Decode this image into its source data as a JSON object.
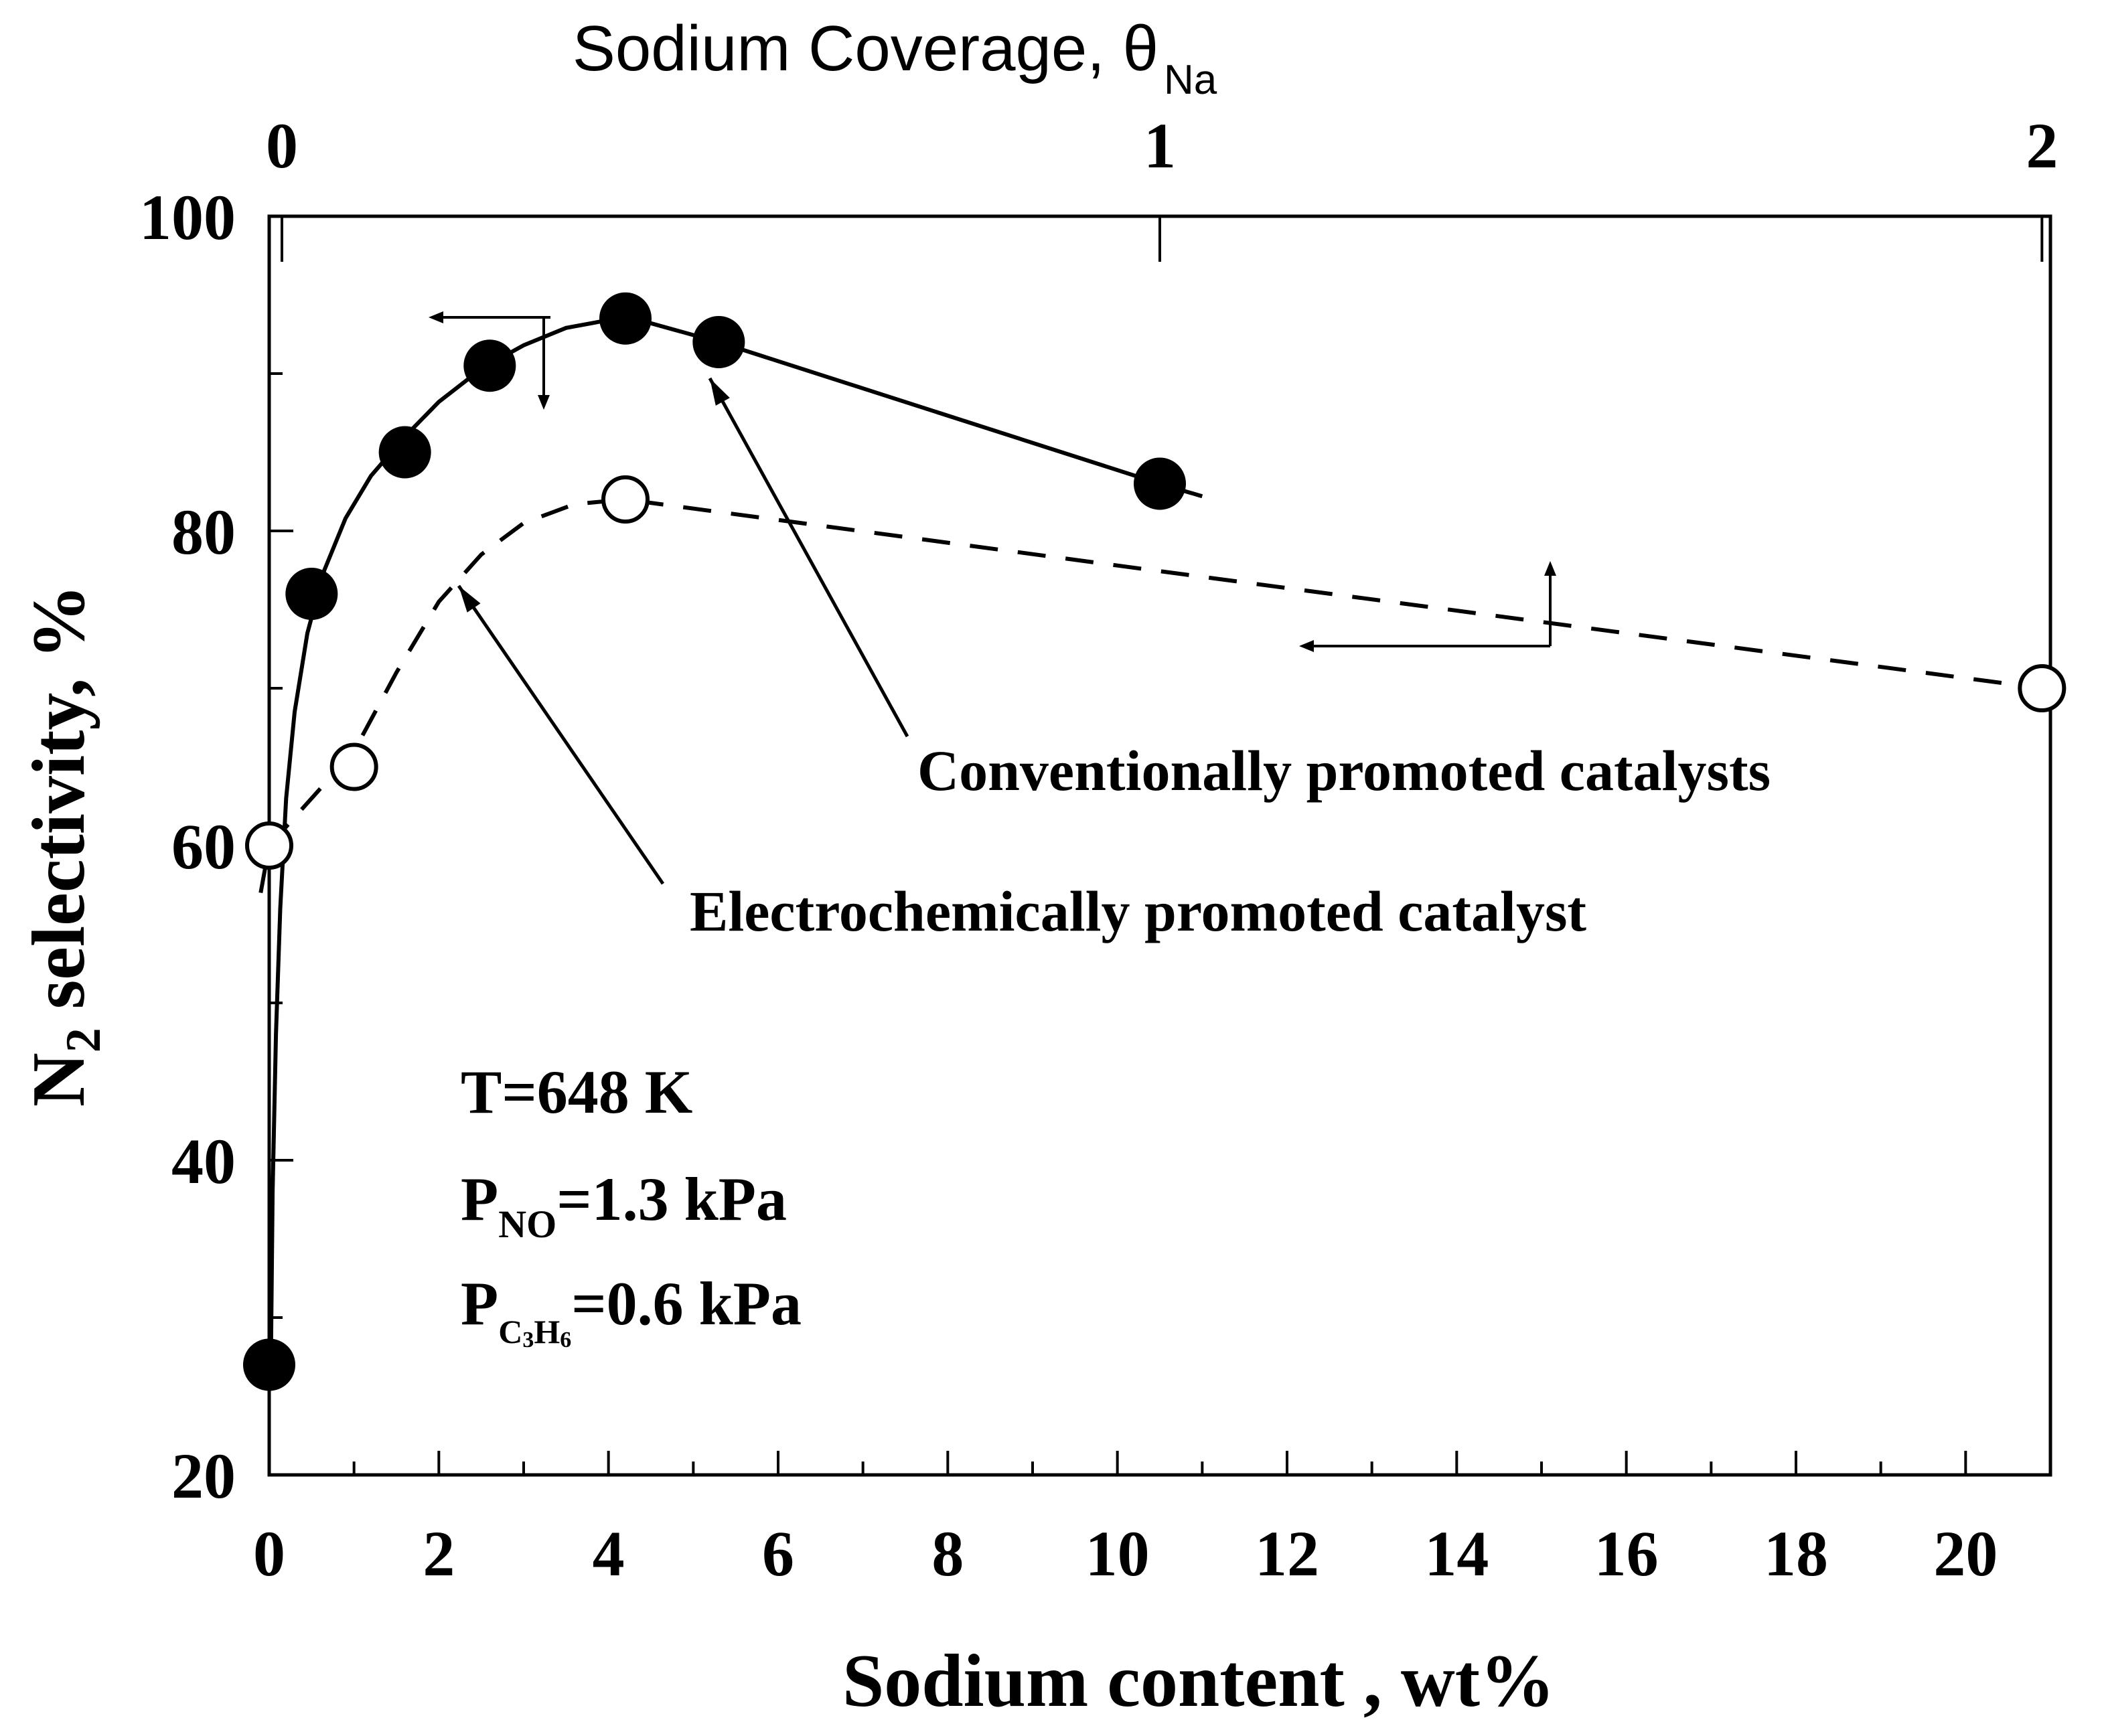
{
  "chart_data": {
    "type": "scatter",
    "xlabel": "Sodium content , wt%",
    "ylabel": "N",
    "ylabel_subscript": "2",
    "ylabel_rest": " selectivity,  %",
    "top_axis_label": "Sodium Coverage, θ",
    "top_axis_label_subscript": "Na",
    "xlim": [
      0,
      21
    ],
    "ylim": [
      20,
      100
    ],
    "x_ticks": [
      0,
      2,
      4,
      6,
      8,
      10,
      12,
      14,
      16,
      18,
      20
    ],
    "x_tick_labels": [
      "0",
      "2",
      "4",
      "6",
      "8",
      "10",
      "12",
      "14",
      "16",
      "18",
      "20"
    ],
    "y_ticks": [
      20,
      40,
      60,
      80,
      100
    ],
    "y_tick_labels": [
      "20",
      "40",
      "60",
      "80",
      "100"
    ],
    "top_ticks": [
      {
        "label": "0",
        "x": 0.15
      },
      {
        "label": "1",
        "x": 10.5
      },
      {
        "label": "2",
        "x": 20.9
      }
    ],
    "series": [
      {
        "name": "Conventionally promoted catalysts",
        "marker": "filled-circle",
        "line": "solid",
        "x": [
          0.0,
          0.5,
          1.6,
          2.6,
          4.2,
          5.3,
          10.5
        ],
        "y": [
          27,
          76,
          85,
          90.5,
          93.5,
          92,
          83
        ]
      },
      {
        "name": "Electrochemically promoted catalyst",
        "marker": "open-circle",
        "line": "dashed",
        "x": [
          0.0,
          1.0,
          4.2,
          20.9
        ],
        "y": [
          60,
          65,
          82,
          70
        ]
      }
    ],
    "annotations": [
      {
        "text": "Conventionally promoted catalysts"
      },
      {
        "text": "Electrochemically promoted catalyst"
      }
    ],
    "conditions": {
      "temperature": "T=648 K",
      "p_no_prefix": "P",
      "p_no_sub": "NO",
      "p_no_value": "=1.3 kPa",
      "p_c3h6_prefix": "P",
      "p_c3h6_sub_c": "C",
      "p_c3h6_sub_3": "3",
      "p_c3h6_sub_h": "H",
      "p_c3h6_sub_6": "6",
      "p_c3h6_value": "=0.6 kPa"
    }
  }
}
